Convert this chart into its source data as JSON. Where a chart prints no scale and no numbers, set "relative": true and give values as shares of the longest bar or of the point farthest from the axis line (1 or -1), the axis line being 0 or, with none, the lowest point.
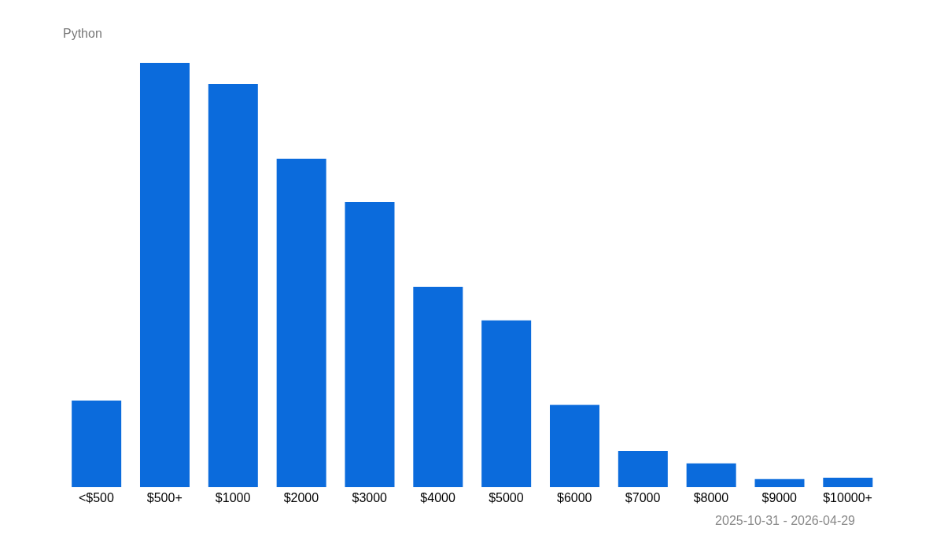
{
  "chart_data": {
    "type": "bar",
    "title": "Python",
    "relative": true,
    "color": "#0b6bdc",
    "categories": [
      "<$500",
      "$500+",
      "$1000",
      "$2000",
      "$3000",
      "$4000",
      "$5000",
      "$6000",
      "$7000",
      "$8000",
      "$9000",
      "$10000+"
    ],
    "values": [
      0.204,
      1,
      0.95,
      0.774,
      0.672,
      0.472,
      0.393,
      0.194,
      0.085,
      0.056,
      0.019,
      0.022
    ],
    "annotations": [
      "2025-10-31 - 2026-04-29"
    ],
    "grid": false,
    "legend": false
  }
}
